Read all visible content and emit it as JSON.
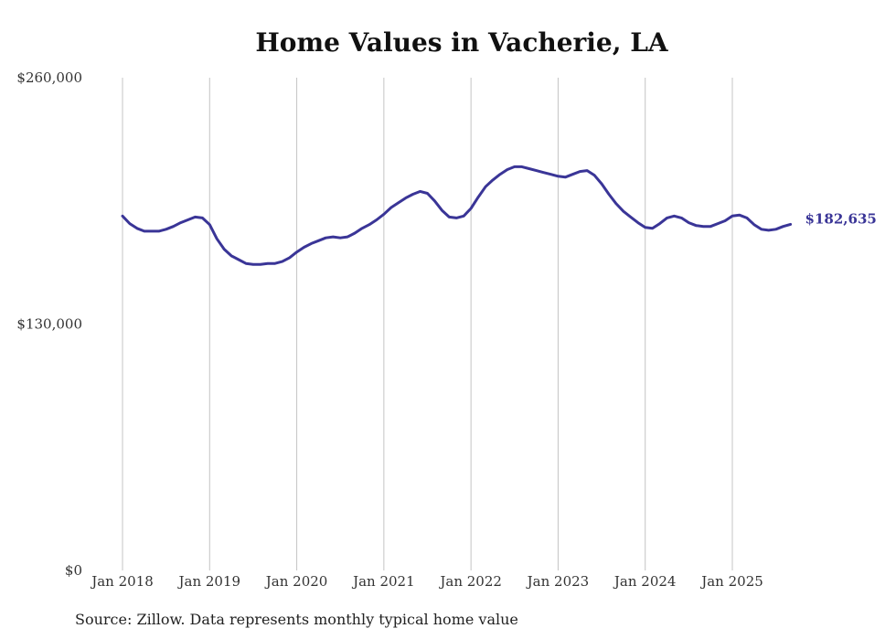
{
  "chart_data": {
    "type": "line",
    "title": "Home Values in Vacherie, LA",
    "source": "Source: Zillow. Data represents monthly typical home value",
    "ylim": [
      0,
      260000
    ],
    "y_ticks": [
      {
        "value": 0,
        "label": "$0"
      },
      {
        "value": 130000,
        "label": "$130,000"
      },
      {
        "value": 260000,
        "label": "$260,000"
      }
    ],
    "x_ticks": [
      {
        "x": 2018.0,
        "label": "Jan 2018"
      },
      {
        "x": 2019.0,
        "label": "Jan 2019"
      },
      {
        "x": 2020.0,
        "label": "Jan 2020"
      },
      {
        "x": 2021.0,
        "label": "Jan 2021"
      },
      {
        "x": 2022.0,
        "label": "Jan 2022"
      },
      {
        "x": 2023.0,
        "label": "Jan 2023"
      },
      {
        "x": 2024.0,
        "label": "Jan 2024"
      },
      {
        "x": 2025.0,
        "label": "Jan 2025"
      }
    ],
    "xlim": [
      2017.54,
      2026.3
    ],
    "grid": "vertical",
    "line_color": "#3a3597",
    "series": [
      {
        "name": "Typical home value",
        "end_label": "$182,635",
        "points": [
          [
            2018.0,
            187000
          ],
          [
            2018.083,
            183000
          ],
          [
            2018.167,
            180500
          ],
          [
            2018.25,
            179000
          ],
          [
            2018.333,
            179000
          ],
          [
            2018.417,
            179000
          ],
          [
            2018.5,
            180000
          ],
          [
            2018.583,
            181500
          ],
          [
            2018.667,
            183500
          ],
          [
            2018.75,
            185000
          ],
          [
            2018.833,
            186500
          ],
          [
            2018.917,
            186000
          ],
          [
            2019.0,
            182500
          ],
          [
            2019.083,
            175000
          ],
          [
            2019.167,
            169500
          ],
          [
            2019.25,
            166000
          ],
          [
            2019.333,
            164000
          ],
          [
            2019.417,
            162000
          ],
          [
            2019.5,
            161500
          ],
          [
            2019.583,
            161500
          ],
          [
            2019.667,
            162000
          ],
          [
            2019.75,
            162000
          ],
          [
            2019.833,
            163000
          ],
          [
            2019.917,
            165000
          ],
          [
            2020.0,
            168000
          ],
          [
            2020.083,
            170500
          ],
          [
            2020.167,
            172500
          ],
          [
            2020.25,
            174000
          ],
          [
            2020.333,
            175500
          ],
          [
            2020.417,
            176000
          ],
          [
            2020.5,
            175500
          ],
          [
            2020.583,
            176000
          ],
          [
            2020.667,
            178000
          ],
          [
            2020.75,
            180500
          ],
          [
            2020.833,
            182500
          ],
          [
            2020.917,
            185000
          ],
          [
            2021.0,
            188000
          ],
          [
            2021.083,
            191500
          ],
          [
            2021.167,
            194000
          ],
          [
            2021.25,
            196500
          ],
          [
            2021.333,
            198500
          ],
          [
            2021.417,
            200000
          ],
          [
            2021.5,
            199000
          ],
          [
            2021.583,
            195000
          ],
          [
            2021.667,
            190000
          ],
          [
            2021.75,
            186500
          ],
          [
            2021.833,
            186000
          ],
          [
            2021.917,
            187000
          ],
          [
            2022.0,
            191000
          ],
          [
            2022.083,
            197000
          ],
          [
            2022.167,
            202500
          ],
          [
            2022.25,
            206000
          ],
          [
            2022.333,
            209000
          ],
          [
            2022.417,
            211500
          ],
          [
            2022.5,
            213000
          ],
          [
            2022.583,
            213000
          ],
          [
            2022.667,
            212000
          ],
          [
            2022.75,
            211000
          ],
          [
            2022.833,
            210000
          ],
          [
            2022.917,
            209000
          ],
          [
            2023.0,
            208000
          ],
          [
            2023.083,
            207500
          ],
          [
            2023.167,
            209000
          ],
          [
            2023.25,
            210500
          ],
          [
            2023.333,
            211000
          ],
          [
            2023.417,
            208500
          ],
          [
            2023.5,
            204000
          ],
          [
            2023.583,
            198500
          ],
          [
            2023.667,
            193500
          ],
          [
            2023.75,
            189500
          ],
          [
            2023.833,
            186500
          ],
          [
            2023.917,
            183500
          ],
          [
            2024.0,
            181000
          ],
          [
            2024.083,
            180500
          ],
          [
            2024.167,
            183000
          ],
          [
            2024.25,
            186000
          ],
          [
            2024.333,
            187000
          ],
          [
            2024.417,
            186000
          ],
          [
            2024.5,
            183500
          ],
          [
            2024.583,
            182000
          ],
          [
            2024.667,
            181500
          ],
          [
            2024.75,
            181500
          ],
          [
            2024.833,
            183000
          ],
          [
            2024.917,
            184500
          ],
          [
            2025.0,
            187000
          ],
          [
            2025.083,
            187500
          ],
          [
            2025.167,
            186000
          ],
          [
            2025.25,
            182500
          ],
          [
            2025.333,
            180000
          ],
          [
            2025.417,
            179500
          ],
          [
            2025.5,
            180000
          ],
          [
            2025.583,
            181500
          ],
          [
            2025.667,
            182635
          ]
        ]
      }
    ]
  }
}
